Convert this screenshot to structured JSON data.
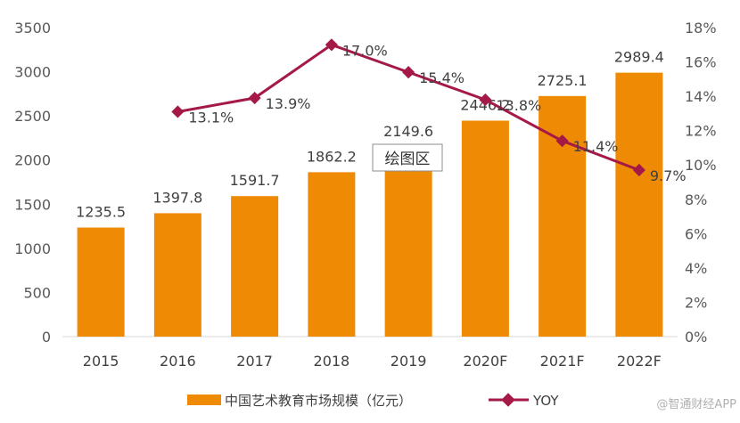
{
  "chart_data": {
    "type": "bar",
    "categories": [
      "2015",
      "2016",
      "2017",
      "2018",
      "2019",
      "2020F",
      "2021F",
      "2022F"
    ],
    "series": [
      {
        "name": "中国艺术教育市场规模（亿元）",
        "type": "bar",
        "axis": "left",
        "color": "#ef8a05",
        "values": [
          1235.5,
          1397.8,
          1591.7,
          1862.2,
          2149.6,
          2446.2,
          2725.1,
          2989.4
        ],
        "labels": [
          "1235.5",
          "1397.8",
          "1591.7",
          "1862.2",
          "2149.6",
          "2446.2",
          "2725.1",
          "2989.4"
        ]
      },
      {
        "name": "YOY",
        "type": "line",
        "axis": "right",
        "color": "#a51946",
        "values": [
          null,
          13.1,
          13.9,
          17.0,
          15.4,
          13.8,
          11.4,
          9.7
        ],
        "labels": [
          "",
          "13.1%",
          "13.9%",
          "17.0%",
          "15.4%",
          "13.8%",
          "11.4%",
          "9.7%"
        ]
      }
    ],
    "y_left": {
      "lim": [
        0,
        3500
      ],
      "ticks": [
        "0",
        "500",
        "1000",
        "1500",
        "2000",
        "2500",
        "3000",
        "3500"
      ]
    },
    "y_right": {
      "lim": [
        0,
        18
      ],
      "ticks": [
        "0%",
        "2%",
        "4%",
        "6%",
        "8%",
        "10%",
        "12%",
        "14%",
        "16%",
        "18%"
      ]
    },
    "legend": {
      "placement": "bottom"
    },
    "grid": false,
    "annotation": "绘图区"
  },
  "watermark": "@智通财经APP"
}
